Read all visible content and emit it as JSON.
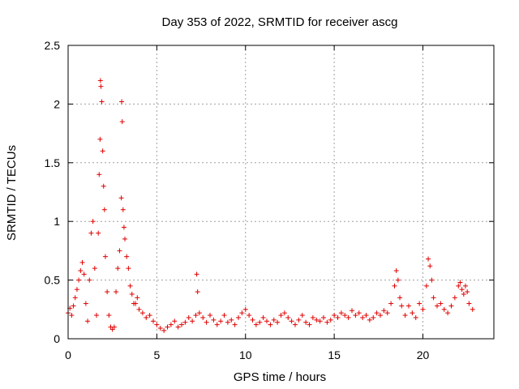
{
  "chart_data": {
    "type": "scatter",
    "title": "Day 353 of 2022, SRMTID for receiver ascg",
    "xlabel": "GPS time / hours",
    "ylabel": "SRMTID / TECUs",
    "xlim": [
      0,
      24
    ],
    "ylim": [
      0,
      2.5
    ],
    "x_ticks": [
      0,
      5,
      10,
      15,
      20
    ],
    "x_tick_labels": [
      "0",
      "5",
      "10",
      "15",
      "20"
    ],
    "y_ticks": [
      0,
      0.5,
      1,
      1.5,
      2,
      2.5
    ],
    "y_tick_labels": [
      "0",
      "0.5",
      "1",
      "1.5",
      "2",
      "2.5"
    ],
    "grid": true,
    "marker": "+",
    "color": "#e00000",
    "series": [
      {
        "name": "SRMTID",
        "x": [
          0.0,
          0.1,
          0.2,
          0.3,
          0.4,
          0.5,
          0.6,
          0.7,
          0.8,
          0.9,
          1.0,
          1.1,
          1.2,
          1.3,
          1.4,
          1.5,
          1.6,
          1.7,
          1.75,
          1.8,
          1.82,
          1.85,
          1.9,
          1.95,
          2.0,
          2.05,
          2.1,
          2.2,
          2.3,
          2.4,
          2.5,
          2.6,
          2.7,
          2.8,
          2.9,
          3.0,
          3.02,
          3.05,
          3.1,
          3.15,
          3.2,
          3.3,
          3.4,
          3.5,
          3.6,
          3.7,
          3.8,
          3.9,
          4.0,
          4.2,
          4.4,
          4.6,
          4.8,
          5.0,
          5.2,
          5.4,
          5.6,
          5.8,
          6.0,
          6.2,
          6.4,
          6.6,
          6.8,
          7.0,
          7.2,
          7.25,
          7.3,
          7.4,
          7.6,
          7.8,
          8.0,
          8.2,
          8.4,
          8.6,
          8.8,
          9.0,
          9.2,
          9.4,
          9.6,
          9.8,
          10.0,
          10.2,
          10.4,
          10.6,
          10.8,
          11.0,
          11.2,
          11.4,
          11.6,
          11.8,
          12.0,
          12.2,
          12.4,
          12.6,
          12.8,
          13.0,
          13.2,
          13.4,
          13.6,
          13.8,
          14.0,
          14.2,
          14.4,
          14.6,
          14.8,
          15.0,
          15.2,
          15.4,
          15.6,
          15.8,
          16.0,
          16.2,
          16.4,
          16.6,
          16.8,
          17.0,
          17.2,
          17.4,
          17.6,
          17.8,
          18.0,
          18.2,
          18.4,
          18.5,
          18.6,
          18.7,
          18.8,
          19.0,
          19.2,
          19.4,
          19.6,
          19.8,
          20.0,
          20.2,
          20.3,
          20.4,
          20.5,
          20.6,
          20.8,
          21.0,
          21.2,
          21.4,
          21.6,
          21.8,
          22.0,
          22.1,
          22.2,
          22.3,
          22.4,
          22.5,
          22.6,
          22.8
        ],
        "y": [
          0.22,
          0.26,
          0.2,
          0.28,
          0.35,
          0.42,
          0.5,
          0.58,
          0.65,
          0.55,
          0.3,
          0.15,
          0.5,
          0.9,
          1.0,
          0.6,
          0.2,
          0.9,
          1.4,
          1.7,
          2.2,
          2.15,
          2.02,
          1.6,
          1.3,
          1.1,
          0.7,
          0.4,
          0.2,
          0.1,
          0.08,
          0.1,
          0.4,
          0.6,
          0.75,
          1.2,
          2.02,
          1.85,
          1.1,
          0.95,
          0.85,
          0.7,
          0.6,
          0.45,
          0.38,
          0.3,
          0.3,
          0.35,
          0.25,
          0.22,
          0.18,
          0.2,
          0.15,
          0.12,
          0.09,
          0.07,
          0.1,
          0.12,
          0.15,
          0.1,
          0.12,
          0.14,
          0.18,
          0.15,
          0.2,
          0.55,
          0.4,
          0.22,
          0.18,
          0.14,
          0.2,
          0.16,
          0.12,
          0.15,
          0.2,
          0.14,
          0.16,
          0.12,
          0.18,
          0.22,
          0.25,
          0.2,
          0.16,
          0.12,
          0.14,
          0.18,
          0.15,
          0.12,
          0.16,
          0.14,
          0.2,
          0.22,
          0.18,
          0.15,
          0.12,
          0.16,
          0.2,
          0.14,
          0.12,
          0.18,
          0.16,
          0.15,
          0.18,
          0.14,
          0.16,
          0.2,
          0.18,
          0.22,
          0.2,
          0.18,
          0.24,
          0.2,
          0.22,
          0.18,
          0.2,
          0.16,
          0.18,
          0.22,
          0.2,
          0.24,
          0.22,
          0.3,
          0.45,
          0.58,
          0.5,
          0.35,
          0.28,
          0.2,
          0.28,
          0.22,
          0.18,
          0.3,
          0.25,
          0.45,
          0.68,
          0.62,
          0.5,
          0.35,
          0.28,
          0.3,
          0.25,
          0.22,
          0.28,
          0.35,
          0.45,
          0.48,
          0.42,
          0.38,
          0.45,
          0.4,
          0.3,
          0.25
        ]
      }
    ]
  }
}
